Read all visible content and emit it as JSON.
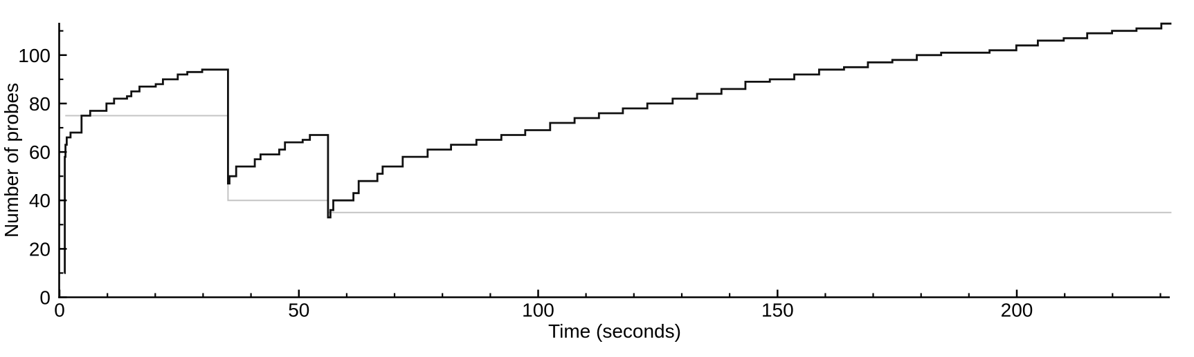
{
  "chart_data": {
    "type": "line",
    "subtype": "step-after",
    "title": "",
    "xlabel": "Time (seconds)",
    "ylabel": "Number of probes",
    "xlim": [
      0,
      233
    ],
    "ylim": [
      0,
      113
    ],
    "grid": false,
    "legend": "none",
    "x_major_ticks": [
      0,
      50,
      100,
      150,
      200
    ],
    "x_minor_ticks": [
      10,
      20,
      30,
      40,
      60,
      70,
      80,
      90,
      110,
      120,
      130,
      140,
      160,
      170,
      180,
      190,
      210,
      220,
      230
    ],
    "y_major_ticks": [
      0,
      20,
      40,
      60,
      80,
      100
    ],
    "y_minor_ticks": [
      10,
      30,
      50,
      70,
      90,
      110
    ],
    "colors": {
      "series": "#111111",
      "reference": "#c4c4c4",
      "axis": "#000000"
    },
    "series": [
      {
        "name": "number-of-probes",
        "color": "#111111",
        "end_x": 232.3,
        "points": [
          [
            1.0,
            10
          ],
          [
            1.1,
            58
          ],
          [
            1.25,
            63
          ],
          [
            1.5,
            66
          ],
          [
            2.3,
            68
          ],
          [
            4.6,
            75
          ],
          [
            6.4,
            77
          ],
          [
            9.8,
            80
          ],
          [
            11.4,
            82
          ],
          [
            14.1,
            83
          ],
          [
            15.0,
            85
          ],
          [
            16.7,
            87
          ],
          [
            20.1,
            88
          ],
          [
            21.6,
            90
          ],
          [
            24.7,
            92
          ],
          [
            26.7,
            93
          ],
          [
            29.8,
            94
          ],
          [
            35.2,
            47
          ],
          [
            35.5,
            50
          ],
          [
            36.9,
            54
          ],
          [
            40.8,
            57
          ],
          [
            42.0,
            59
          ],
          [
            45.9,
            61
          ],
          [
            47.1,
            64
          ],
          [
            50.8,
            65
          ],
          [
            52.3,
            67
          ],
          [
            56.1,
            33
          ],
          [
            56.6,
            36
          ],
          [
            57.2,
            40
          ],
          [
            61.4,
            43
          ],
          [
            62.5,
            48
          ],
          [
            66.4,
            51
          ],
          [
            67.5,
            54
          ],
          [
            71.7,
            58
          ],
          [
            76.9,
            61
          ],
          [
            81.8,
            63
          ],
          [
            87.1,
            65
          ],
          [
            92.3,
            67
          ],
          [
            97.3,
            69
          ],
          [
            102.5,
            72
          ],
          [
            107.6,
            74
          ],
          [
            112.7,
            76
          ],
          [
            117.7,
            78
          ],
          [
            122.8,
            80
          ],
          [
            128.1,
            82
          ],
          [
            133.2,
            84
          ],
          [
            138.3,
            86
          ],
          [
            143.3,
            89
          ],
          [
            148.4,
            90
          ],
          [
            153.5,
            92
          ],
          [
            158.7,
            94
          ],
          [
            163.9,
            95
          ],
          [
            168.9,
            97
          ],
          [
            174.0,
            98
          ],
          [
            179.1,
            100
          ],
          [
            184.2,
            101
          ],
          [
            194.3,
            102
          ],
          [
            199.9,
            104
          ],
          [
            204.4,
            106
          ],
          [
            209.8,
            107
          ],
          [
            214.7,
            109
          ],
          [
            219.9,
            110
          ],
          [
            225.0,
            111
          ],
          [
            230.2,
            113
          ]
        ]
      },
      {
        "name": "reference-level",
        "color": "#c4c4c4",
        "levels": [
          {
            "level": 75,
            "from": 1.2,
            "to": 35.2
          },
          {
            "level": 40,
            "from": 35.2,
            "to": 56.1
          },
          {
            "level": 35,
            "from": 56.1,
            "to": 232.3
          }
        ]
      }
    ]
  }
}
